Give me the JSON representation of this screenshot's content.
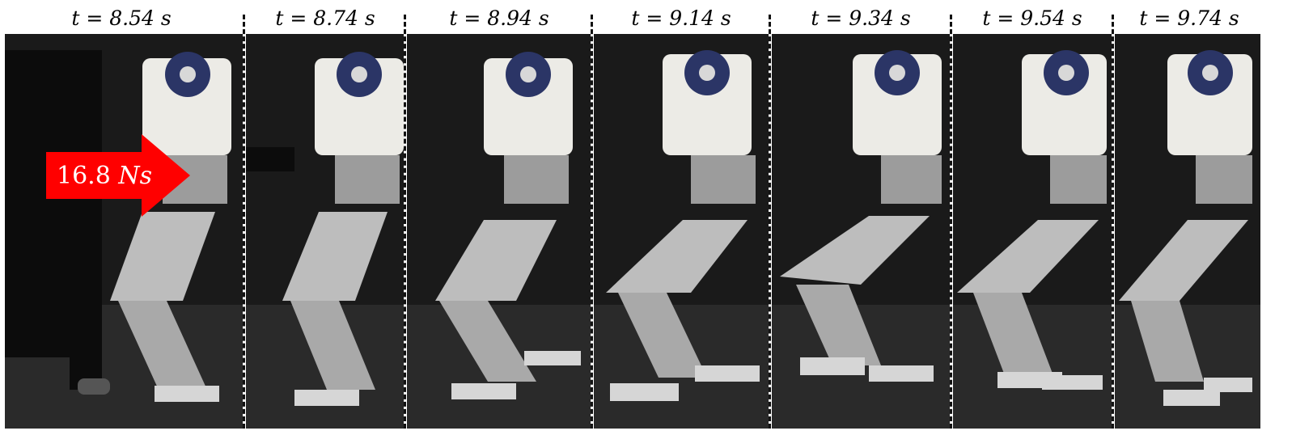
{
  "frames": [
    {
      "label": "t = 8.54 s"
    },
    {
      "label": "t = 8.74 s"
    },
    {
      "label": "t = 8.94 s"
    },
    {
      "label": "t = 9.14 s"
    },
    {
      "label": "t = 9.34 s"
    },
    {
      "label": "t = 9.54 s"
    },
    {
      "label": "t = 9.74 s"
    }
  ],
  "impulse": {
    "value": "16.8",
    "unit": "Ns"
  },
  "colors": {
    "arrow": "#ff0000",
    "background": "#1a1a1a",
    "robot_body": "#ecebe6",
    "badge": "#2b3566"
  },
  "icons": {
    "push_arrow": "right-arrow-icon"
  }
}
